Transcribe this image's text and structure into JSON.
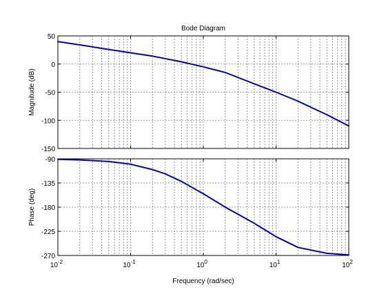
{
  "chart_data": [
    {
      "type": "line",
      "title": "Bode Diagram",
      "xlabel": "",
      "ylabel": "Magnitude (dB)",
      "xscale": "log",
      "xlim": [
        0.01,
        100
      ],
      "ylim": [
        -150,
        50
      ],
      "yticks": [
        50,
        0,
        -50,
        -100,
        -150
      ],
      "grid": true,
      "color": "#0000b8",
      "series": [
        {
          "x": [
            0.01,
            0.02,
            0.05,
            0.1,
            0.2,
            0.5,
            1,
            2,
            5,
            10,
            20,
            50,
            100
          ],
          "y": [
            40,
            34,
            26,
            20,
            14,
            4,
            -5,
            -15,
            -35,
            -50,
            -66,
            -90,
            -110
          ]
        }
      ]
    },
    {
      "type": "line",
      "title": "",
      "xlabel": "Frequency  (rad/sec)",
      "ylabel": "Phase (deg)",
      "xscale": "log",
      "xlim": [
        0.01,
        100
      ],
      "ylim": [
        -270,
        -90
      ],
      "yticks": [
        -90,
        -135,
        -180,
        -225,
        -270
      ],
      "xtick_labels": [
        {
          "base": "10",
          "exp": "-2"
        },
        {
          "base": "10",
          "exp": "-1"
        },
        {
          "base": "10",
          "exp": "0"
        },
        {
          "base": "10",
          "exp": "1"
        },
        {
          "base": "10",
          "exp": "2"
        }
      ],
      "grid": true,
      "color": "#0000b8",
      "series": [
        {
          "x": [
            0.01,
            0.02,
            0.05,
            0.1,
            0.2,
            0.3,
            0.5,
            1,
            2,
            5,
            10,
            20,
            50,
            100
          ],
          "y": [
            -91,
            -92,
            -95,
            -100,
            -110,
            -118,
            -132,
            -155,
            -180,
            -210,
            -235,
            -255,
            -266,
            -269
          ]
        }
      ]
    }
  ]
}
